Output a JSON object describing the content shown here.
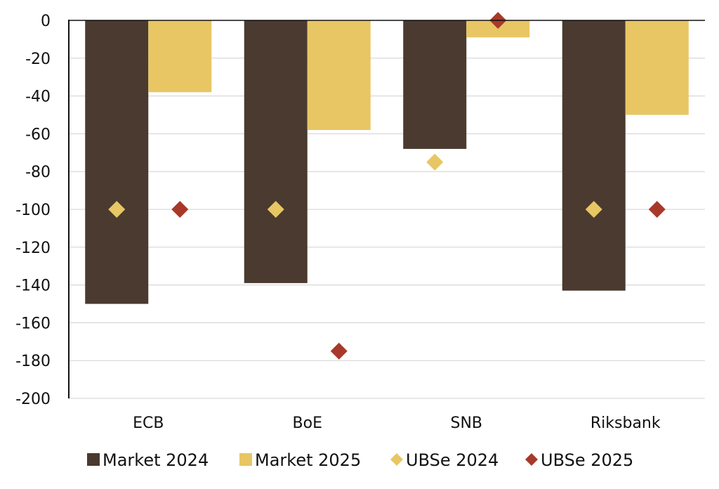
{
  "colors": {
    "market_2024": "#4a3a2f",
    "market_2025": "#e8c664",
    "ubse_2024": "#e8c664",
    "ubse_2025": "#a8392a",
    "gridline": "#d0d0d0",
    "axis": "#111111"
  },
  "chart_data": {
    "type": "bar",
    "title": "",
    "xlabel": "",
    "ylabel": "",
    "ylim": [
      -200,
      0
    ],
    "yticks": [
      0,
      -20,
      -40,
      -60,
      -80,
      -100,
      -120,
      -140,
      -160,
      -180,
      -200
    ],
    "ytick_labels": [
      "0",
      "-20",
      "-40",
      "-60",
      "-80",
      "-100",
      "-120",
      "-140",
      "-160",
      "-180",
      "-200"
    ],
    "grid": true,
    "legend_position": "bottom",
    "categories": [
      "ECB",
      "BoE",
      "SNB",
      "Riksbank"
    ],
    "series": [
      {
        "name": "Market 2024",
        "kind": "bar",
        "color_key": "market_2024",
        "values": [
          -150,
          -139,
          -68,
          -143
        ]
      },
      {
        "name": "Market 2025",
        "kind": "bar",
        "color_key": "market_2025",
        "values": [
          -38,
          -58,
          -9,
          -50
        ]
      },
      {
        "name": "UBSe 2024",
        "kind": "marker",
        "color_key": "ubse_2024",
        "values": [
          -100,
          -100,
          -75,
          -100
        ]
      },
      {
        "name": "UBSe 2025",
        "kind": "marker",
        "color_key": "ubse_2025",
        "values": [
          -100,
          -175,
          0,
          -100
        ]
      }
    ]
  }
}
